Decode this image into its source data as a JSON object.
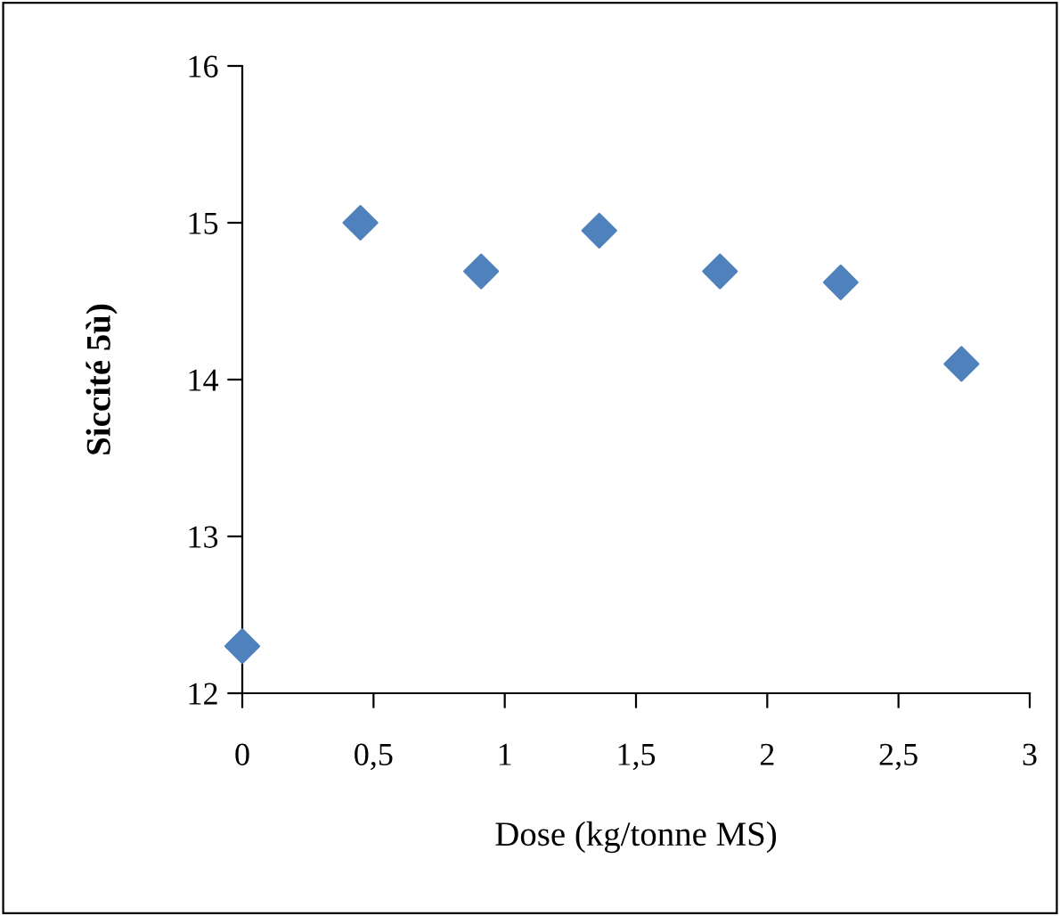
{
  "chart_data": {
    "type": "scatter",
    "xlabel": "Dose (kg/tonne MS)",
    "ylabel": "Siccité 5ù)",
    "x": [
      0,
      0.45,
      0.91,
      1.36,
      1.82,
      2.28,
      2.74
    ],
    "series": [
      {
        "color": "#4f81bd",
        "values": [
          12.3,
          15.0,
          14.69,
          14.95,
          14.69,
          14.62,
          14.1
        ]
      }
    ],
    "xlim": [
      0,
      3
    ],
    "ylim": [
      12,
      16
    ],
    "xticks": [
      0,
      {
        "value": 0.5,
        "label": "0,5"
      },
      1,
      {
        "value": 1.5,
        "label": "1,5"
      },
      2,
      {
        "value": 2.5,
        "label": "2,5"
      },
      3
    ],
    "yticks": [
      12,
      13,
      14,
      15,
      16
    ],
    "marker": "diamond",
    "grid": false,
    "legend": false
  }
}
